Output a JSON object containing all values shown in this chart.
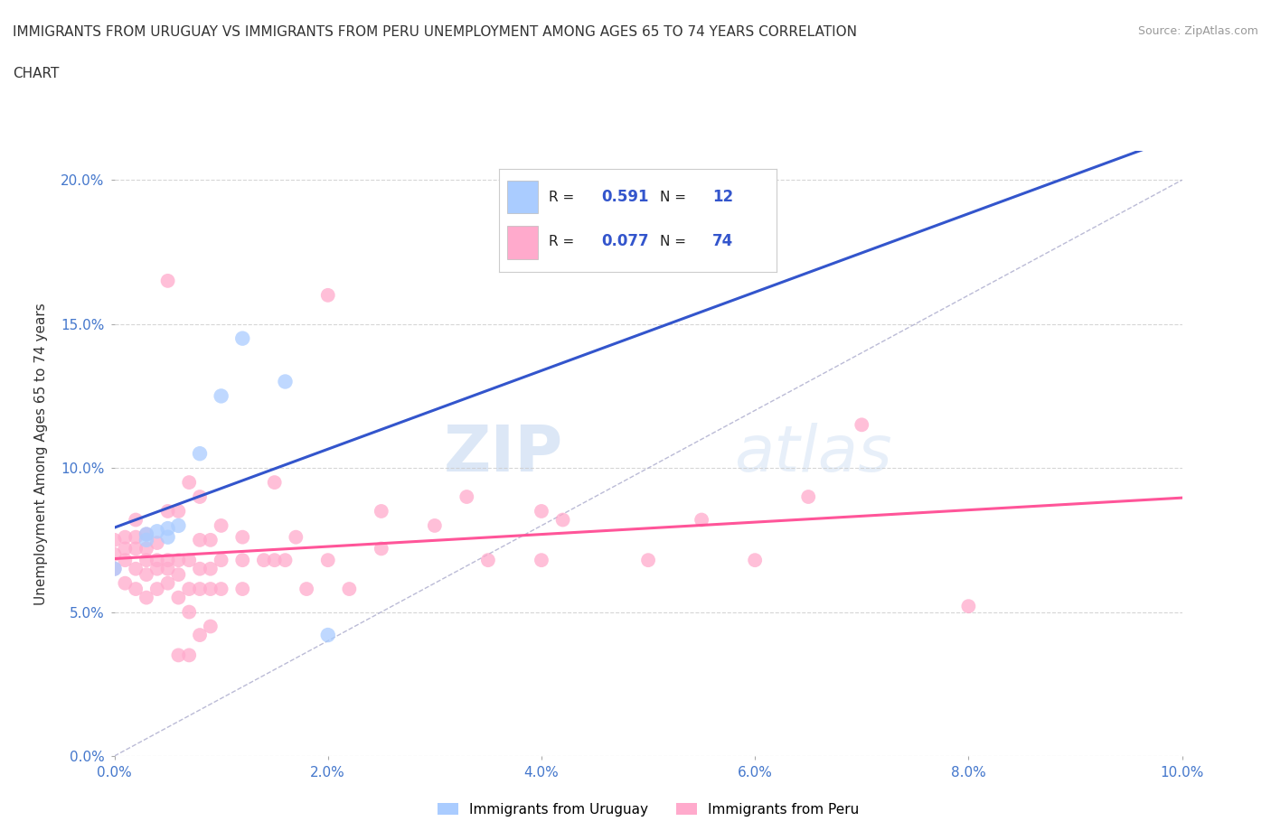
{
  "title_line1": "IMMIGRANTS FROM URUGUAY VS IMMIGRANTS FROM PERU UNEMPLOYMENT AMONG AGES 65 TO 74 YEARS CORRELATION",
  "title_line2": "CHART",
  "source_text": "Source: ZipAtlas.com",
  "ylabel": "Unemployment Among Ages 65 to 74 years",
  "xlim": [
    0.0,
    0.1
  ],
  "ylim": [
    0.0,
    0.21
  ],
  "xticks": [
    0.0,
    0.02,
    0.04,
    0.06,
    0.08,
    0.1
  ],
  "xtick_labels": [
    "0.0%",
    "2.0%",
    "4.0%",
    "6.0%",
    "8.0%",
    "10.0%"
  ],
  "yticks": [
    0.0,
    0.05,
    0.1,
    0.15,
    0.2
  ],
  "ytick_labels": [
    "0.0%",
    "5.0%",
    "10.0%",
    "15.0%",
    "20.0%"
  ],
  "background_color": "#ffffff",
  "grid_color": "#cccccc",
  "diagonal_line_color": "#aaaacc",
  "uruguay_color": "#aaccff",
  "peru_color": "#ffaacc",
  "uruguay_line_color": "#3355cc",
  "peru_line_color": "#ff5599",
  "uruguay_R": "0.591",
  "uruguay_N": "12",
  "peru_R": "0.077",
  "peru_N": "74",
  "watermark_zip": "ZIP",
  "watermark_atlas": "atlas",
  "legend_label_uruguay": "Immigrants from Uruguay",
  "legend_label_peru": "Immigrants from Peru",
  "uruguay_data": [
    [
      0.0,
      0.065
    ],
    [
      0.003,
      0.075
    ],
    [
      0.003,
      0.077
    ],
    [
      0.004,
      0.078
    ],
    [
      0.005,
      0.076
    ],
    [
      0.005,
      0.079
    ],
    [
      0.006,
      0.08
    ],
    [
      0.008,
      0.105
    ],
    [
      0.01,
      0.125
    ],
    [
      0.012,
      0.145
    ],
    [
      0.016,
      0.13
    ],
    [
      0.02,
      0.042
    ]
  ],
  "peru_data": [
    [
      0.0,
      0.065
    ],
    [
      0.0,
      0.07
    ],
    [
      0.0,
      0.075
    ],
    [
      0.001,
      0.06
    ],
    [
      0.001,
      0.068
    ],
    [
      0.001,
      0.072
    ],
    [
      0.001,
      0.076
    ],
    [
      0.002,
      0.058
    ],
    [
      0.002,
      0.065
    ],
    [
      0.002,
      0.072
    ],
    [
      0.002,
      0.076
    ],
    [
      0.002,
      0.082
    ],
    [
      0.003,
      0.055
    ],
    [
      0.003,
      0.063
    ],
    [
      0.003,
      0.068
    ],
    [
      0.003,
      0.072
    ],
    [
      0.003,
      0.077
    ],
    [
      0.004,
      0.058
    ],
    [
      0.004,
      0.065
    ],
    [
      0.004,
      0.068
    ],
    [
      0.004,
      0.074
    ],
    [
      0.005,
      0.06
    ],
    [
      0.005,
      0.065
    ],
    [
      0.005,
      0.068
    ],
    [
      0.005,
      0.085
    ],
    [
      0.005,
      0.165
    ],
    [
      0.006,
      0.035
    ],
    [
      0.006,
      0.055
    ],
    [
      0.006,
      0.063
    ],
    [
      0.006,
      0.068
    ],
    [
      0.006,
      0.085
    ],
    [
      0.007,
      0.035
    ],
    [
      0.007,
      0.05
    ],
    [
      0.007,
      0.058
    ],
    [
      0.007,
      0.068
    ],
    [
      0.007,
      0.095
    ],
    [
      0.008,
      0.042
    ],
    [
      0.008,
      0.058
    ],
    [
      0.008,
      0.065
    ],
    [
      0.008,
      0.075
    ],
    [
      0.008,
      0.09
    ],
    [
      0.009,
      0.045
    ],
    [
      0.009,
      0.058
    ],
    [
      0.009,
      0.065
    ],
    [
      0.009,
      0.075
    ],
    [
      0.01,
      0.058
    ],
    [
      0.01,
      0.068
    ],
    [
      0.01,
      0.08
    ],
    [
      0.012,
      0.058
    ],
    [
      0.012,
      0.068
    ],
    [
      0.012,
      0.076
    ],
    [
      0.014,
      0.068
    ],
    [
      0.015,
      0.068
    ],
    [
      0.015,
      0.095
    ],
    [
      0.016,
      0.068
    ],
    [
      0.017,
      0.076
    ],
    [
      0.018,
      0.058
    ],
    [
      0.02,
      0.068
    ],
    [
      0.02,
      0.16
    ],
    [
      0.022,
      0.058
    ],
    [
      0.025,
      0.072
    ],
    [
      0.025,
      0.085
    ],
    [
      0.03,
      0.08
    ],
    [
      0.033,
      0.09
    ],
    [
      0.035,
      0.068
    ],
    [
      0.04,
      0.068
    ],
    [
      0.04,
      0.085
    ],
    [
      0.042,
      0.082
    ],
    [
      0.05,
      0.068
    ],
    [
      0.055,
      0.082
    ],
    [
      0.06,
      0.068
    ],
    [
      0.065,
      0.09
    ],
    [
      0.07,
      0.115
    ],
    [
      0.08,
      0.052
    ]
  ]
}
